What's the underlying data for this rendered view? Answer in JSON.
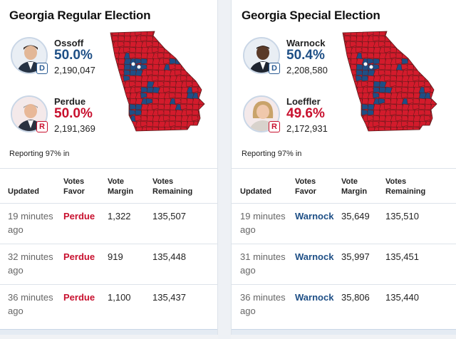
{
  "panels": [
    {
      "title": "Georgia Regular Election",
      "candidates": [
        {
          "name": "Ossoff",
          "pct": "50.0%",
          "votes": "2,190,047",
          "party": "D",
          "party_color": "#2a5b93"
        },
        {
          "name": "Perdue",
          "pct": "50.0%",
          "votes": "2,191,369",
          "party": "R",
          "party_color": "#c8102e"
        }
      ],
      "reporting": "Reporting 97% in",
      "headers": {
        "updated": "Updated",
        "favor": "Votes\nFavor",
        "margin": "Vote\nMargin",
        "remaining": "Votes\nRemaining"
      },
      "rows": [
        {
          "time": "19 minutes ago",
          "favor": "Perdue",
          "margin": "1,322",
          "remaining": "135,507"
        },
        {
          "time": "32 minutes ago",
          "favor": "Perdue",
          "margin": "919",
          "remaining": "135,448"
        },
        {
          "time": "36 minutes ago",
          "favor": "Perdue",
          "margin": "1,100",
          "remaining": "135,437"
        }
      ]
    },
    {
      "title": "Georgia Special Election",
      "candidates": [
        {
          "name": "Warnock",
          "pct": "50.4%",
          "votes": "2,208,580",
          "party": "D",
          "party_color": "#2a5b93"
        },
        {
          "name": "Loeffler",
          "pct": "49.6%",
          "votes": "2,172,931",
          "party": "R",
          "party_color": "#c8102e"
        }
      ],
      "reporting": "Reporting 97% in",
      "headers": {
        "updated": "Updated",
        "favor": "Votes\nFavor",
        "margin": "Vote\nMargin",
        "remaining": "Votes\nRemaining"
      },
      "rows": [
        {
          "time": "19 minutes ago",
          "favor": "Warnock",
          "margin": "35,649",
          "remaining": "135,510"
        },
        {
          "time": "31 minutes ago",
          "favor": "Warnock",
          "margin": "35,997",
          "remaining": "135,451"
        },
        {
          "time": "36 minutes ago",
          "favor": "Warnock",
          "margin": "35,806",
          "remaining": "135,440"
        }
      ]
    }
  ],
  "map_colors": {
    "rep": "#d31b2c",
    "dem": "#1f4e85",
    "border": "#5a1a1a"
  }
}
